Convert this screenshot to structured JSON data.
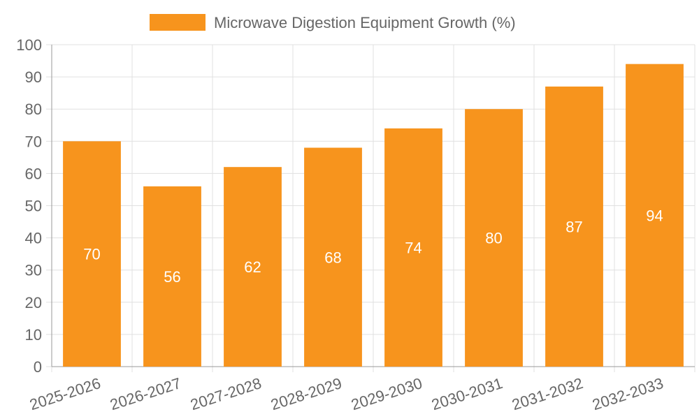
{
  "chart_data": {
    "type": "bar",
    "categories": [
      "2025-2026",
      "2026-2027",
      "2027-2028",
      "2028-2029",
      "2029-2030",
      "2030-2031",
      "2031-2032",
      "2032-2033"
    ],
    "series": [
      {
        "name": "Microwave Digestion Equipment Growth (%)",
        "values": [
          70,
          56,
          62,
          68,
          74,
          80,
          87,
          94
        ],
        "color": "#f7941d"
      }
    ],
    "ylim": [
      0,
      100
    ],
    "yticks": [
      0,
      10,
      20,
      30,
      40,
      50,
      60,
      70,
      80,
      90,
      100
    ],
    "grid": true,
    "legend_position": "top",
    "data_labels": true,
    "colors": {
      "grid": "#e0e0e0",
      "axis": "#999999",
      "text": "#666666",
      "data_label": "#ffffff"
    }
  }
}
